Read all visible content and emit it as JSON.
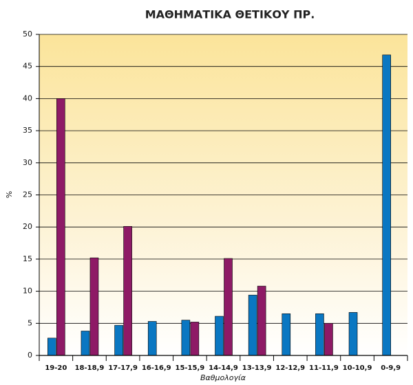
{
  "chart_data": {
    "type": "bar",
    "title": "ΜΑΘΗΜΑΤΙΚΑ ΘΕΤΙΚΟΥ ΠΡ.",
    "x_label": "Βαθμολογία",
    "y_label": "%",
    "categories": [
      "19-20",
      "18-18,9",
      "17-17,9",
      "16-16,9",
      "15-15,9",
      "14-14,9",
      "13-13,9",
      "12-12,9",
      "11-11,9",
      "10-10,9",
      "0-9,9"
    ],
    "series": [
      {
        "color": "#0a77c2",
        "values": [
          2.7,
          3.8,
          4.7,
          5.3,
          5.5,
          6.1,
          9.4,
          6.5,
          6.5,
          6.7,
          46.8
        ]
      },
      {
        "color": "#8e1a66",
        "values": [
          40,
          15.2,
          20.1,
          0,
          5.2,
          15.1,
          10.8,
          0,
          5,
          0,
          0
        ]
      }
    ],
    "ylim": [
      0,
      50
    ],
    "yticks": [
      0,
      5,
      10,
      15,
      20,
      25,
      30,
      35,
      40,
      45,
      50
    ],
    "grid": true
  }
}
